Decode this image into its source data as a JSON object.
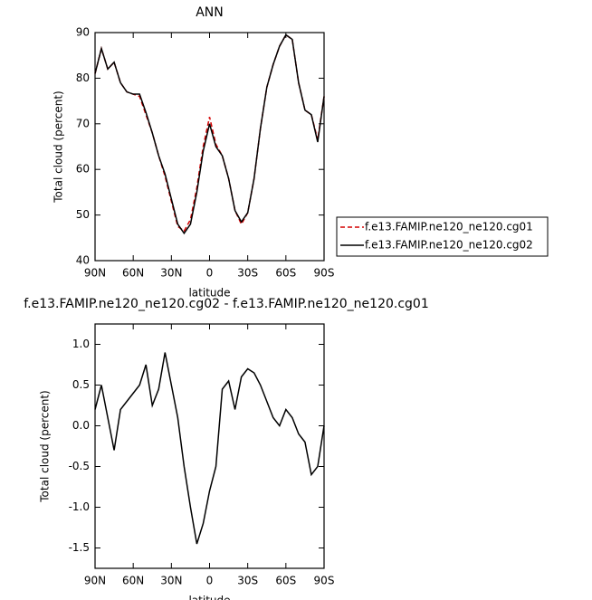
{
  "chart_data": [
    {
      "type": "line",
      "title": "ANN",
      "x_label": "latitude",
      "y_label": "Total cloud (percent)",
      "x": [
        90,
        85,
        80,
        75,
        70,
        65,
        60,
        55,
        50,
        45,
        40,
        35,
        30,
        25,
        20,
        15,
        10,
        5,
        0,
        -5,
        -10,
        -15,
        -20,
        -25,
        -30,
        -35,
        -40,
        -45,
        -50,
        -55,
        -60,
        -65,
        -70,
        -75,
        -80,
        -85,
        -90
      ],
      "xlim": [
        90,
        -90
      ],
      "xticks": [
        {
          "value": 90,
          "label": "90N"
        },
        {
          "value": 60,
          "label": "60N"
        },
        {
          "value": 30,
          "label": "30N"
        },
        0,
        {
          "value": -30,
          "label": "30S"
        },
        {
          "value": -60,
          "label": "60S"
        },
        {
          "value": -90,
          "label": "90S"
        }
      ],
      "ylim": [
        40,
        90
      ],
      "yticks": [
        40,
        50,
        60,
        70,
        80,
        90
      ],
      "legend": "right",
      "series": [
        {
          "name": "f.e13.FAMIP.ne120_ne120.cg01",
          "color": "#d40000",
          "linestyle": "dashed",
          "values": [
            81,
            86.5,
            82,
            83.5,
            79,
            77,
            76.5,
            76,
            72,
            68,
            63,
            58.5,
            53,
            47.5,
            46.5,
            49,
            56,
            65,
            71.5,
            65.5,
            63,
            58,
            51,
            48,
            50.5,
            58,
            69,
            78,
            83,
            87,
            89.5,
            88.5,
            79,
            73,
            72,
            66.5,
            76
          ]
        },
        {
          "name": "f.e13.FAMIP.ne120_ne120.cg02",
          "color": "#000000",
          "linestyle": "solid",
          "values": [
            81,
            86.5,
            82,
            83.5,
            79,
            77,
            76.5,
            76.5,
            72.5,
            68,
            63,
            59,
            53.5,
            48,
            46,
            48,
            55,
            64,
            70,
            65,
            63,
            58,
            51,
            48.5,
            50.5,
            58,
            69,
            78,
            83,
            87,
            89.5,
            88.5,
            79,
            73,
            72,
            66,
            76
          ]
        }
      ]
    },
    {
      "type": "line",
      "title": "f.e13.FAMIP.ne120_ne120.cg02 - f.e13.FAMIP.ne120_ne120.cg01",
      "x_label": "latitude",
      "y_label": "Total cloud (percent)",
      "x": [
        90,
        85,
        80,
        75,
        70,
        65,
        60,
        55,
        50,
        45,
        40,
        35,
        30,
        25,
        20,
        15,
        10,
        5,
        0,
        -5,
        -10,
        -15,
        -20,
        -25,
        -30,
        -35,
        -40,
        -45,
        -50,
        -55,
        -60,
        -65,
        -70,
        -75,
        -80,
        -85,
        -90
      ],
      "xlim": [
        90,
        -90
      ],
      "xticks": [
        {
          "value": 90,
          "label": "90N"
        },
        {
          "value": 60,
          "label": "60N"
        },
        {
          "value": 30,
          "label": "30N"
        },
        0,
        {
          "value": -30,
          "label": "30S"
        },
        {
          "value": -60,
          "label": "60S"
        },
        {
          "value": -90,
          "label": "90S"
        }
      ],
      "ylim": [
        -1.75,
        1.25
      ],
      "yticks": [
        -1.5,
        {
          "value": -1,
          "label": "-1.0"
        },
        -0.5,
        {
          "value": 0,
          "label": "0.0"
        },
        0.5,
        {
          "value": 1,
          "label": "1.0"
        }
      ],
      "color": "#000000",
      "values": [
        0.2,
        0.5,
        0.1,
        -0.3,
        0.2,
        0.3,
        0.4,
        0.5,
        0.75,
        0.25,
        0.45,
        0.9,
        0.5,
        0.1,
        -0.5,
        -1.0,
        -1.45,
        -1.2,
        -0.8,
        -0.5,
        0.45,
        0.55,
        0.2,
        0.6,
        0.7,
        0.65,
        0.5,
        0.3,
        0.1,
        0.0,
        0.2,
        0.1,
        -0.1,
        -0.2,
        -0.6,
        -0.5,
        0.0
      ]
    }
  ]
}
